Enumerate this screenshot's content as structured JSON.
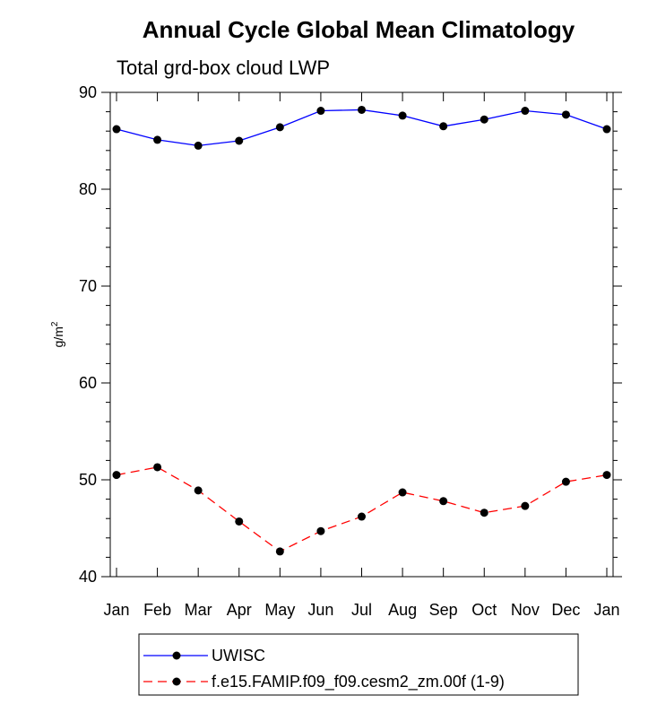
{
  "chart_data": {
    "type": "line",
    "title": "Annual Cycle Global Mean Climatology",
    "subtitle": "Total grd-box cloud LWP",
    "ylabel": "g/m",
    "ylabel_sup": "2",
    "xlabel": "",
    "ylim": [
      40,
      90
    ],
    "yticks": [
      40,
      50,
      60,
      70,
      80,
      90
    ],
    "categories": [
      "Jan",
      "Feb",
      "Mar",
      "Apr",
      "May",
      "Jun",
      "Jul",
      "Aug",
      "Sep",
      "Oct",
      "Nov",
      "Dec",
      "Jan"
    ],
    "series": [
      {
        "name": "UWISC",
        "color": "#0000ff",
        "dash": "solid",
        "values": [
          86.2,
          85.1,
          84.5,
          85.0,
          86.4,
          88.1,
          88.2,
          87.6,
          86.5,
          87.2,
          88.1,
          87.7,
          86.2
        ]
      },
      {
        "name": "f.e15.FAMIP.f09_f09.cesm2_zm.00f (1-9)",
        "color": "#ff0000",
        "dash": "dashed",
        "values": [
          50.5,
          51.3,
          48.9,
          45.7,
          42.6,
          44.7,
          46.2,
          48.7,
          47.8,
          46.6,
          47.3,
          49.8,
          50.5
        ]
      }
    ],
    "legend_position": "bottom"
  }
}
